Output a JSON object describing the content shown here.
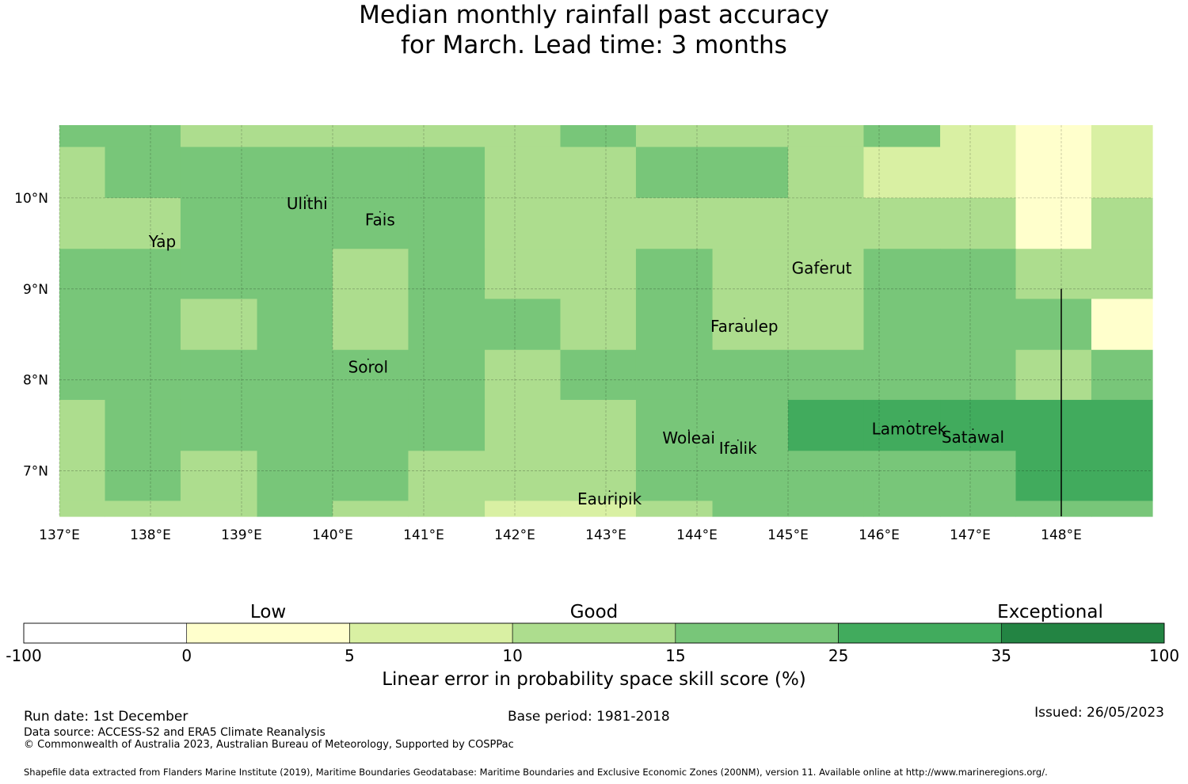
{
  "title": {
    "line1": "Median monthly rainfall past accuracy",
    "line2": "for March. Lead time: 3 months"
  },
  "chart_data": {
    "type": "heatmap",
    "lon_range": [
      137.0,
      149.0
    ],
    "lat_range": [
      6.5,
      10.8
    ],
    "x_ticks": [
      137,
      138,
      139,
      140,
      141,
      142,
      143,
      144,
      145,
      146,
      147,
      148
    ],
    "x_tick_labels": [
      "137°E",
      "138°E",
      "139°E",
      "140°E",
      "141°E",
      "142°E",
      "143°E",
      "144°E",
      "145°E",
      "146°E",
      "147°E",
      "148°E"
    ],
    "y_ticks": [
      7,
      8,
      9,
      10
    ],
    "y_tick_labels": [
      "7°N",
      "8°N",
      "9°N",
      "10°N"
    ],
    "grid": true,
    "cell_lon_edges": [
      137.0,
      137.5,
      138.33,
      139.17,
      140.0,
      140.83,
      141.67,
      142.5,
      143.33,
      144.17,
      145.0,
      145.83,
      146.67,
      147.5,
      148.33,
      149.0
    ],
    "cell_lat_edges": [
      10.8,
      10.56,
      10.0,
      9.44,
      8.89,
      8.33,
      7.78,
      7.22,
      6.67,
      6.5
    ],
    "category_grid_note": "rows from north to south, columns from west to east; values are colour category indices (1: 0-5, 2: 5-10, 3: 10-15, 4: 15-25, 5: 25-35)",
    "category_grid": [
      [
        4,
        4,
        3,
        3,
        3,
        3,
        3,
        4,
        3,
        3,
        3,
        4,
        2,
        1,
        2
      ],
      [
        3,
        4,
        4,
        4,
        4,
        4,
        3,
        3,
        4,
        4,
        3,
        2,
        2,
        1,
        2
      ],
      [
        3,
        3,
        4,
        4,
        4,
        4,
        3,
        3,
        3,
        3,
        3,
        3,
        3,
        1,
        3
      ],
      [
        4,
        4,
        4,
        4,
        3,
        4,
        3,
        3,
        4,
        3,
        3,
        4,
        4,
        3,
        3
      ],
      [
        4,
        4,
        3,
        4,
        3,
        4,
        4,
        3,
        4,
        3,
        3,
        4,
        4,
        4,
        1
      ],
      [
        4,
        4,
        4,
        4,
        4,
        4,
        3,
        4,
        4,
        4,
        4,
        4,
        4,
        3,
        4
      ],
      [
        3,
        4,
        4,
        4,
        4,
        4,
        3,
        3,
        4,
        4,
        5,
        5,
        5,
        5,
        5
      ],
      [
        3,
        4,
        3,
        4,
        4,
        3,
        3,
        3,
        4,
        4,
        4,
        4,
        4,
        5,
        5
      ],
      [
        3,
        3,
        3,
        4,
        3,
        3,
        2,
        2,
        3,
        4,
        4,
        4,
        4,
        4,
        4
      ]
    ],
    "places": [
      {
        "name": "Ulithi",
        "lon": 139.72,
        "lat": 9.94
      },
      {
        "name": "Fais",
        "lon": 140.52,
        "lat": 9.76
      },
      {
        "name": "Yap",
        "lon": 138.13,
        "lat": 9.52
      },
      {
        "name": "Gaferut",
        "lon": 145.37,
        "lat": 9.23
      },
      {
        "name": "Faraulep",
        "lon": 144.52,
        "lat": 8.59
      },
      {
        "name": "Sorol",
        "lon": 140.39,
        "lat": 8.14
      },
      {
        "name": "Woleai",
        "lon": 143.91,
        "lat": 7.36
      },
      {
        "name": "Ifalik",
        "lon": 144.45,
        "lat": 7.25
      },
      {
        "name": "Lamotrek",
        "lon": 146.33,
        "lat": 7.46
      },
      {
        "name": "Satawal",
        "lon": 147.03,
        "lat": 7.37
      },
      {
        "name": "Eauripik",
        "lon": 143.04,
        "lat": 6.69
      }
    ],
    "boundary_line": {
      "lon": 148.0,
      "lat_from": 6.5,
      "lat_to": 9.0
    },
    "colorbar": {
      "boundaries": [
        "-100",
        "0",
        "5",
        "10",
        "15",
        "25",
        "35",
        "100"
      ],
      "colors": [
        "#ffffff",
        "#ffffcc",
        "#d9f0a3",
        "#addd8e",
        "#78c679",
        "#41ab5d",
        "#238443"
      ],
      "categories": [
        {
          "label": "Low",
          "center_index": 1.5
        },
        {
          "label": "Good",
          "center_index": 3.5
        },
        {
          "label": "Exceptional",
          "center_index": 6.3
        }
      ],
      "label": "Linear error in probability space skill score (%)"
    }
  },
  "footer": {
    "run_date": "Run date: 1st December",
    "base_period": "Base period: 1981-2018",
    "issued": "Issued: 26/05/2023",
    "data_source": "Data source: ACCESS-S2 and ERA5 Climate Reanalysis",
    "copyright": "© Commonwealth of Australia 2023, Australian Bureau of Meteorology, Supported by COSPPac",
    "shapefile": "Shapefile data extracted from Flanders Marine Institute (2019), Maritime Boundaries Geodatabase: Maritime Boundaries and Exclusive Economic Zones (200NM), version 11. Available online at http://www.marineregions.org/."
  }
}
